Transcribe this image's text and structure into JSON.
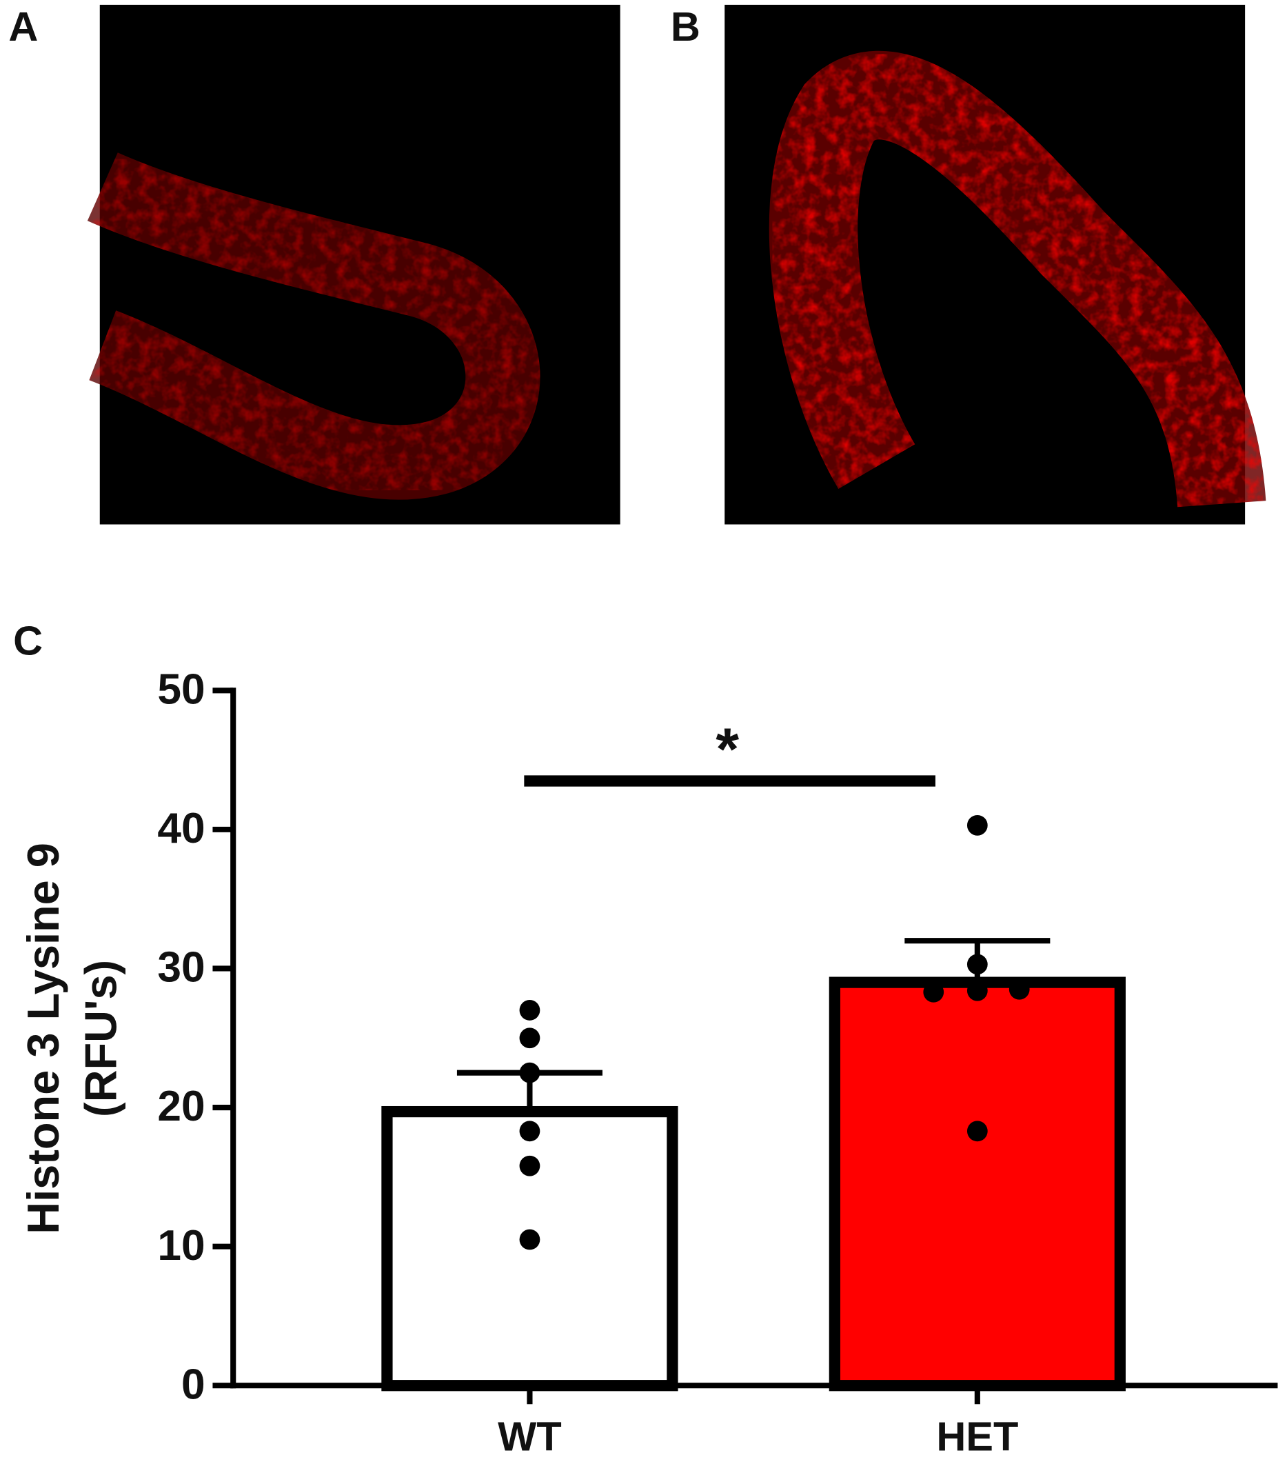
{
  "panel_labels": [
    "A",
    "B",
    "C"
  ],
  "chart_data": {
    "type": "bar",
    "ylabel": [
      "Histone 3 Lysine 9",
      "(RFU's)"
    ],
    "categories": [
      "WT",
      "HET"
    ],
    "values": [
      19.7,
      29.0
    ],
    "errors": [
      2.8,
      3.0
    ],
    "colors": [
      "#ffffff",
      "#ff0000"
    ],
    "points": [
      [
        27.0,
        25.0,
        22.5,
        18.3,
        15.8,
        10.5
      ],
      [
        40.3,
        30.3,
        28.3,
        28.4,
        28.5,
        18.3
      ]
    ],
    "ylim": [
      0,
      50
    ],
    "yticks": [
      0,
      10,
      20,
      30,
      40,
      50
    ],
    "annotation": "*"
  }
}
